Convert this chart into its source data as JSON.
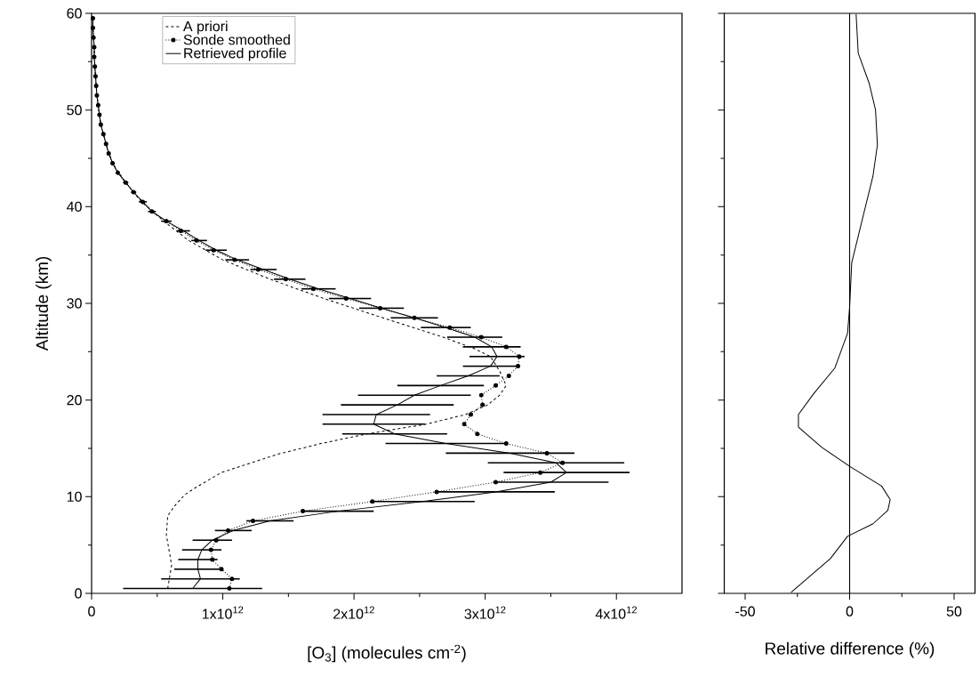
{
  "chart_data": [
    {
      "type": "line",
      "xlabel": "[O$_{3}$] (molecules cm$^{-2}$)",
      "ylabel": "Altitude (km)",
      "xlim": [
        0,
        4500000000000.0
      ],
      "ylim": [
        0,
        60
      ],
      "xticks": [
        0,
        {
          "value": 1000000000000.0,
          "label": "1x10$^{12}$"
        },
        {
          "value": 2000000000000.0,
          "label": "2x10$^{12}$"
        },
        {
          "value": 3000000000000.0,
          "label": "3x10$^{12}$"
        },
        {
          "value": 4000000000000.0,
          "label": "4x10$^{12}$"
        }
      ],
      "yticks": [
        0,
        10,
        20,
        30,
        40,
        50,
        60
      ],
      "legend": "top left",
      "series": [
        {
          "name": "A priori",
          "color": "#000000",
          "line_style": "dashed",
          "marker": "none",
          "x": [
            580000000000.0,
            610000000000.0,
            590000000000.0,
            570000000000.0,
            580000000000.0,
            630000000000.0,
            710000000000.0,
            800000000000.0,
            990000000000.0,
            1420000000000.0,
            1750000000000.0,
            2100000000000.0,
            2550000000000.0,
            2850000000000.0,
            3020000000000.0,
            3110000000000.0,
            3160000000000.0,
            3110000000000.0,
            3040000000000.0,
            2920000000000.0,
            2680000000000.0,
            2220000000000.0,
            1770000000000.0,
            1360000000000.0,
            1000000000000.0,
            740000000000.0,
            550000000000.0,
            380000000000.0,
            260000000000.0,
            160000000000.0,
            110000000000.0,
            70000000000.0,
            50000000000.0,
            35000000000.0,
            25000000000.0,
            20000000000.0,
            10000000000.0,
            10000000000.0
          ],
          "values": [
            0.5,
            2.9,
            4.5,
            6,
            8,
            9,
            10.2,
            11,
            12.5,
            14.4,
            15.5,
            16.5,
            17.5,
            18.5,
            19.5,
            20.5,
            21.5,
            23,
            24.5,
            25.3,
            26.5,
            28.5,
            30.5,
            32.5,
            34.5,
            36.5,
            38.5,
            40.5,
            42.5,
            44.5,
            46.5,
            48.5,
            50.5,
            52.5,
            54.5,
            56.5,
            58.5,
            59.5
          ]
        },
        {
          "name": "Sonde smoothed",
          "color": "#000000",
          "line_style": "dotted",
          "marker": "circle",
          "x": [
            1050000000000.0,
            1070000000000.0,
            990000000000.0,
            920000000000.0,
            910000000000.0,
            950000000000.0,
            1040000000000.0,
            1230000000000.0,
            1610000000000.0,
            2140000000000.0,
            2630000000000.0,
            3080000000000.0,
            3420000000000.0,
            3590000000000.0,
            3470000000000.0,
            3160000000000.0,
            2940000000000.0,
            2840000000000.0,
            2890000000000.0,
            2980000000000.0,
            2970000000000.0,
            3080000000000.0,
            3180000000000.0,
            3250000000000.0,
            3260000000000.0,
            3160000000000.0,
            2970000000000.0,
            2730000000000.0,
            2460000000000.0,
            2200000000000.0,
            1940000000000.0,
            1690000000000.0,
            1480000000000.0,
            1270000000000.0,
            1090000000000.0,
            930000000000.0,
            800000000000.0,
            680000000000.0,
            570000000000.0,
            460000000000.0,
            390000000000.0,
            320000000000.0,
            260000000000.0,
            200000000000.0,
            160000000000.0,
            130000000000.0,
            110000000000.0,
            90000000000.0,
            70000000000.0,
            60000000000.0,
            50000000000.0,
            40000000000.0,
            35000000000.0,
            30000000000.0,
            25000000000.0,
            20000000000.0,
            20000000000.0,
            15000000000.0,
            10000000000.0,
            10000000000.0
          ],
          "values": [
            0.5,
            1.5,
            2.5,
            3.5,
            4.5,
            5.5,
            6.5,
            7.5,
            8.5,
            9.5,
            10.5,
            11.5,
            12.5,
            13.5,
            14.5,
            15.5,
            16.5,
            17.5,
            18.5,
            19.5,
            20.5,
            21.5,
            22.5,
            23.5,
            24.5,
            25.5,
            26.5,
            27.5,
            28.5,
            29.5,
            30.5,
            31.5,
            32.5,
            33.5,
            34.5,
            35.5,
            36.5,
            37.5,
            38.5,
            39.5,
            40.5,
            41.5,
            42.5,
            43.5,
            44.5,
            45.5,
            46.5,
            47.5,
            48.5,
            49.5,
            50.5,
            51.5,
            52.5,
            53.5,
            54.5,
            55.5,
            56.5,
            57.5,
            58.5,
            59.5
          ]
        },
        {
          "name": "Retrieved profile",
          "color": "#000000",
          "line_style": "solid",
          "marker": "none",
          "x": [
            770000000000.0,
            830000000000.0,
            810000000000.0,
            810000000000.0,
            840000000000.0,
            920000000000.0,
            1080000000000.0,
            1360000000000.0,
            1880000000000.0,
            2520000000000.0,
            3080000000000.0,
            3500000000000.0,
            3620000000000.0,
            3540000000000.0,
            3190000000000.0,
            2700000000000.0,
            2310000000000.0,
            2150000000000.0,
            2170000000000.0,
            2330000000000.0,
            2460000000000.0,
            2660000000000.0,
            2870000000000.0,
            3040000000000.0,
            3090000000000.0,
            3050000000000.0,
            2920000000000.0,
            2700000000000.0,
            2460000000000.0,
            2210000000000.0,
            1970000000000.0,
            1730000000000.0,
            1510000000000.0,
            1310000000000.0,
            1110000000000.0,
            950000000000.0,
            820000000000.0,
            700000000000.0,
            570000000000.0,
            460000000000.0,
            390000000000.0,
            320000000000.0,
            260000000000.0,
            200000000000.0,
            160000000000.0,
            130000000000.0,
            110000000000.0,
            90000000000.0,
            70000000000.0,
            60000000000.0,
            50000000000.0,
            40000000000.0,
            35000000000.0,
            30000000000.0,
            25000000000.0,
            20000000000.0,
            20000000000.0,
            15000000000.0,
            10000000000.0,
            10000000000.0
          ],
          "values": [
            0.5,
            1.5,
            2.5,
            3.5,
            4.5,
            5.5,
            6.5,
            7.5,
            8.5,
            9.5,
            10.5,
            11.5,
            12.5,
            13.5,
            14.5,
            15.5,
            16.5,
            17.5,
            18.5,
            19.5,
            20.5,
            21.5,
            22.5,
            23.5,
            24.5,
            25.5,
            26.5,
            27.5,
            28.5,
            29.5,
            30.5,
            31.5,
            32.5,
            33.5,
            34.5,
            35.5,
            36.5,
            37.5,
            38.5,
            39.5,
            40.5,
            41.5,
            42.5,
            43.5,
            44.5,
            45.5,
            46.5,
            47.5,
            48.5,
            49.5,
            50.5,
            51.5,
            52.5,
            53.5,
            54.5,
            55.5,
            56.5,
            57.5,
            58.5,
            59.5
          ],
          "xerrors": [
            530000000000.0,
            300000000000.0,
            180000000000.0,
            150000000000.0,
            150000000000.0,
            150000000000.0,
            140000000000.0,
            180000000000.0,
            270000000000.0,
            400000000000.0,
            450000000000.0,
            440000000000.0,
            480000000000.0,
            520000000000.0,
            490000000000.0,
            460000000000.0,
            400000000000.0,
            390000000000.0,
            410000000000.0,
            430000000000.0,
            430000000000.0,
            330000000000.0,
            240000000000.0,
            210000000000.0,
            210000000000.0,
            220000000000.0,
            210000000000.0,
            190000000000.0,
            180000000000.0,
            170000000000.0,
            160000000000.0,
            130000000000.0,
            120000000000.0,
            100000000000.0,
            90000000000.0,
            80000000000.0,
            60000000000.0,
            50000000000.0,
            40000000000.0,
            30000000000.0,
            30000000000.0,
            20000000000.0,
            20000000000.0,
            null,
            null,
            null,
            null,
            null,
            null,
            null,
            null,
            null,
            null,
            null,
            null,
            null,
            null,
            null,
            null,
            null
          ]
        }
      ]
    },
    {
      "type": "line",
      "xlabel": "Relative difference (%)",
      "xlim": [
        -60,
        60
      ],
      "ylim": [
        0,
        60
      ],
      "xticks": [
        -50,
        0,
        50
      ],
      "yticks": [
        0,
        10,
        20,
        30,
        40,
        50,
        60
      ],
      "tick_labels": "x",
      "ref_lines": [
        {
          "axis": "x",
          "value": 0,
          "color": "#000000"
        }
      ],
      "series": [
        {
          "color": "#000000",
          "x": [
            -28,
            -9.2,
            -1,
            11.2,
            18.3,
            19.4,
            15.3,
            0.3,
            -13.3,
            -24.5,
            -24.5,
            -17.4,
            -7.1,
            -1,
            0,
            1,
            6.1,
            11.2,
            13.3,
            12.4,
            9.3,
            4.1,
            3.1
          ],
          "values": [
            0.1,
            3.6,
            5.9,
            7.2,
            8.6,
            9.7,
            11.1,
            13.1,
            15.1,
            17.2,
            18.5,
            20.6,
            23.3,
            26.9,
            29.6,
            34.2,
            38.7,
            43.2,
            46.4,
            50.0,
            52.8,
            55.9,
            59.9
          ]
        }
      ]
    }
  ]
}
